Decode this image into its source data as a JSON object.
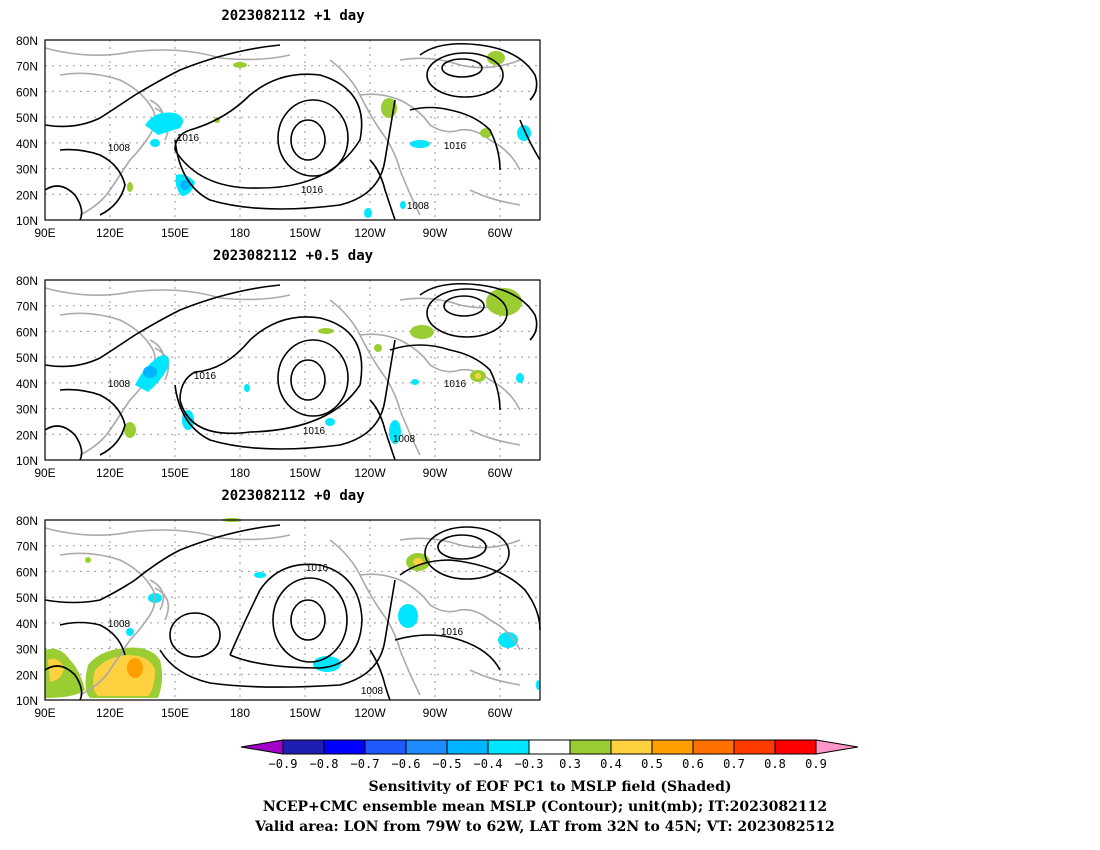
{
  "panels": [
    {
      "title": "2023082112 +1 day"
    },
    {
      "title": "2023082112 +0.5 day"
    },
    {
      "title": "2023082112 +0 day"
    }
  ],
  "lat_ticks": [
    "80N",
    "70N",
    "60N",
    "50N",
    "40N",
    "30N",
    "20N",
    "10N"
  ],
  "lon_ticks": [
    "90E",
    "120E",
    "150E",
    "180",
    "150W",
    "120W",
    "90W",
    "60W"
  ],
  "contour_labels": [
    "1016",
    "1008"
  ],
  "colorbar": {
    "labels": [
      "−0.9",
      "−0.8",
      "−0.7",
      "−0.6",
      "−0.5",
      "−0.4",
      "−0.3",
      "0.3",
      "0.4",
      "0.5",
      "0.6",
      "0.7",
      "0.8",
      "0.9"
    ],
    "colors": [
      "#a000c8",
      "#1e1eb4",
      "#0000ff",
      "#1e5aff",
      "#1e8cff",
      "#00b4ff",
      "#00e6ff",
      "#ffffff",
      "#9acd32",
      "#ffd040",
      "#ffa000",
      "#ff7000",
      "#ff3c00",
      "#ff0000",
      "#ff96c8"
    ]
  },
  "caption": {
    "line1": "Sensitivity of EOF PC1 to MSLP field (Shaded)",
    "line2": "NCEP+CMC ensemble mean MSLP (Contour); unit(mb); IT:2023082112",
    "line3": "Valid area: LON from 79W to 62W, LAT from 32N to 45N; VT: 2023082512"
  }
}
